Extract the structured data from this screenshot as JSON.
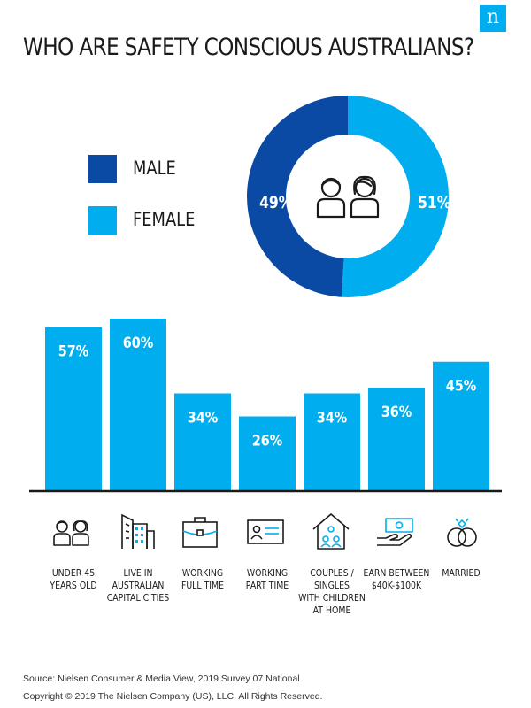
{
  "logo": {
    "glyph": "n",
    "icon": "nielsen-logo-icon"
  },
  "title": "WHO ARE SAFETY CONSCIOUS AUSTRALIANS?",
  "colors": {
    "dark": "#0a4aa4",
    "light": "#00aeef",
    "axis": "#1a1a1a"
  },
  "chart_data": [
    {
      "type": "pie",
      "title": "",
      "categories": [
        "MALE",
        "FEMALE"
      ],
      "values": [
        49,
        51
      ],
      "value_labels": [
        "49%",
        "51%"
      ],
      "colors": [
        "#0a4aa4",
        "#00aeef"
      ],
      "donut": true,
      "legend": "left",
      "center_icon": "man-and-woman-icon"
    },
    {
      "type": "bar",
      "title": "",
      "xlabel": "",
      "ylabel": "",
      "ylim": [
        0,
        65
      ],
      "grid": false,
      "categories": [
        [
          "UNDER 45",
          "YEARS OLD"
        ],
        [
          "LIVE IN",
          "AUSTRALIAN",
          "CAPITAL CITIES"
        ],
        [
          "WORKING",
          "FULL TIME"
        ],
        [
          "WORKING",
          "PART TIME"
        ],
        [
          "COUPLES / SINGLES",
          "WITH CHILDREN",
          "AT HOME"
        ],
        [
          "EARN BETWEEN",
          "$40K-$100K"
        ],
        [
          "MARRIED"
        ]
      ],
      "icons": [
        "people-icon",
        "city-buildings-icon",
        "briefcase-icon",
        "id-card-icon",
        "family-home-icon",
        "money-hand-icon",
        "wedding-rings-icon"
      ],
      "values": [
        57,
        60,
        34,
        26,
        34,
        36,
        45
      ],
      "value_labels": [
        "57%",
        "60%",
        "34%",
        "26%",
        "34%",
        "36%",
        "45%"
      ],
      "color": "#00aeef"
    }
  ],
  "footer": {
    "source": "Source: Nielsen Consumer & Media View, 2019 Survey 07 National",
    "copyright": "Copyright © 2019 The Nielsen Company (US), LLC. All Rights Reserved."
  }
}
